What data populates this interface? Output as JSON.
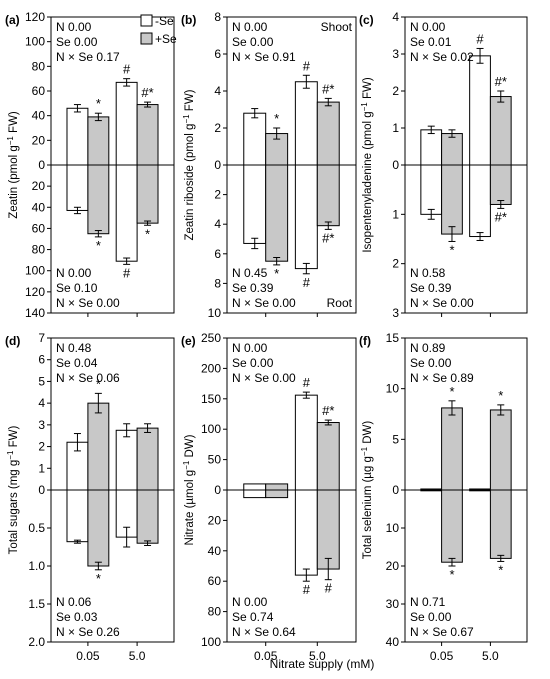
{
  "legend": {
    "ctrl": "-Se",
    "se": "+Se"
  },
  "xlabel": "Nitrate supply (mM)",
  "chart_data": [
    {
      "type": "bar",
      "label": "(a)",
      "ylabel": "Zeatin (pmol g⁻¹ FW)",
      "categories": [
        "0.05",
        "5.0"
      ],
      "upper": {
        "ylim": [
          0,
          120
        ],
        "ticks": [
          "120",
          "100",
          "80",
          "60",
          "40",
          "20",
          "0"
        ],
        "series": [
          {
            "name": "-Se",
            "values": [
              46,
              67
            ],
            "err": [
              3,
              3
            ],
            "marks": [
              "",
              "#"
            ]
          },
          {
            "name": "+Se",
            "values": [
              39,
              49
            ],
            "err": [
              3,
              2
            ],
            "marks": [
              "*",
              "#*"
            ]
          }
        ]
      },
      "lower": {
        "ylim": [
          0,
          140
        ],
        "ticks": [
          "20",
          "40",
          "60",
          "80",
          "100",
          "120",
          "140"
        ],
        "series": [
          {
            "name": "-Se",
            "values": [
              43,
              91
            ],
            "err": [
              3,
              3
            ],
            "marks": [
              "",
              "#"
            ]
          },
          {
            "name": "+Se",
            "values": [
              65,
              55
            ],
            "err": [
              3,
              2
            ],
            "marks": [
              "*",
              "*"
            ]
          }
        ]
      },
      "stats_top": [
        "N 0.00",
        "Se 0.00",
        "N × Se 0.17"
      ],
      "stats_bottom": [
        "N 0.00",
        "Se 0.10",
        "N × Se 0.00"
      ]
    },
    {
      "type": "bar",
      "label": "(b)",
      "ylabel": "Zeatin riboside (pmol g⁻¹ FW)",
      "categories": [
        "0.05",
        "5.0"
      ],
      "tag_top": "Shoot",
      "tag_bottom": "Root",
      "upper": {
        "ylim": [
          0,
          8
        ],
        "ticks": [
          "8",
          "6",
          "4",
          "2",
          "0"
        ],
        "series": [
          {
            "name": "-Se",
            "values": [
              2.8,
              4.5
            ],
            "err": [
              0.25,
              0.35
            ],
            "marks": [
              "",
              "#"
            ]
          },
          {
            "name": "+Se",
            "values": [
              1.7,
              3.4
            ],
            "err": [
              0.3,
              0.2
            ],
            "marks": [
              "*",
              "#*"
            ]
          }
        ]
      },
      "lower": {
        "ylim": [
          0,
          10
        ],
        "ticks": [
          "2",
          "4",
          "6",
          "8",
          "10"
        ],
        "series": [
          {
            "name": "-Se",
            "values": [
              5.3,
              7.0
            ],
            "err": [
              0.35,
              0.35
            ],
            "marks": [
              "",
              "#"
            ]
          },
          {
            "name": "+Se",
            "values": [
              6.5,
              4.1
            ],
            "err": [
              0.25,
              0.25
            ],
            "marks": [
              "*",
              "#*"
            ]
          }
        ]
      },
      "stats_top": [
        "N 0.00",
        "Se 0.00",
        "N × Se 0.91"
      ],
      "stats_bottom": [
        "N 0.45",
        "Se 0.39",
        "N × Se 0.00"
      ]
    },
    {
      "type": "bar",
      "label": "(c)",
      "ylabel": "Isopentenyladenine (pmol g⁻¹ FW)",
      "categories": [
        "0.05",
        "5.0"
      ],
      "upper": {
        "ylim": [
          0,
          4
        ],
        "ticks": [
          "4",
          "3",
          "2",
          "1",
          "0"
        ],
        "series": [
          {
            "name": "-Se",
            "values": [
              0.95,
              2.95
            ],
            "err": [
              0.1,
              0.2
            ],
            "marks": [
              "",
              "#"
            ]
          },
          {
            "name": "+Se",
            "values": [
              0.85,
              1.85
            ],
            "err": [
              0.1,
              0.15
            ],
            "marks": [
              "",
              "#*"
            ]
          }
        ]
      },
      "lower": {
        "ylim": [
          0,
          3
        ],
        "ticks": [
          "1",
          "2",
          "3"
        ],
        "series": [
          {
            "name": "-Se",
            "values": [
              1.0,
              1.45
            ],
            "err": [
              0.1,
              0.08
            ],
            "marks": [
              "",
              ""
            ]
          },
          {
            "name": "+Se",
            "values": [
              1.4,
              0.8
            ],
            "err": [
              0.15,
              0.08
            ],
            "marks": [
              "*",
              "#*"
            ]
          }
        ]
      },
      "stats_top": [
        "N 0.00",
        "Se 0.01",
        "N × Se 0.02"
      ],
      "stats_bottom": [
        "N 0.58",
        "Se 0.39",
        "N × Se 0.00"
      ]
    },
    {
      "type": "bar",
      "label": "(d)",
      "ylabel": "Total sugars (mg g⁻¹ FW)",
      "categories": [
        "0.05",
        "5.0"
      ],
      "upper": {
        "ylim": [
          0,
          7
        ],
        "ticks": [
          "7",
          "6",
          "5",
          "4",
          "3",
          "2",
          "1",
          "0"
        ],
        "series": [
          {
            "name": "-Se",
            "values": [
              2.2,
              2.75
            ],
            "err": [
              0.4,
              0.3
            ],
            "marks": [
              "",
              ""
            ]
          },
          {
            "name": "+Se",
            "values": [
              4.0,
              2.85
            ],
            "err": [
              0.45,
              0.2
            ],
            "marks": [
              "*",
              ""
            ]
          }
        ]
      },
      "lower": {
        "ylim": [
          0,
          2
        ],
        "ticks": [
          "0.5",
          "1.0",
          "1.5",
          "2.0"
        ],
        "series": [
          {
            "name": "-Se",
            "values": [
              0.68,
              0.62
            ],
            "err": [
              0.02,
              0.13
            ],
            "marks": [
              "",
              ""
            ]
          },
          {
            "name": "+Se",
            "values": [
              1.0,
              0.7
            ],
            "err": [
              0.05,
              0.03
            ],
            "marks": [
              "*",
              ""
            ]
          }
        ]
      },
      "stats_top": [
        "N 0.48",
        "Se 0.04",
        "N × Se 0.06"
      ],
      "stats_bottom": [
        "N 0.06",
        "Se 0.03",
        "N × Se 0.26"
      ]
    },
    {
      "type": "bar",
      "label": "(e)",
      "ylabel": "Nitrate (µmol g⁻¹ DW)",
      "categories": [
        "0.05",
        "5.0"
      ],
      "upper": {
        "ylim": [
          0,
          250
        ],
        "ticks": [
          "250",
          "200",
          "150",
          "100",
          "50",
          "0"
        ],
        "series": [
          {
            "name": "-Se",
            "values": [
              10,
              156
            ],
            "err": [
              0,
              5
            ],
            "marks": [
              "",
              "#"
            ]
          },
          {
            "name": "+Se",
            "values": [
              10,
              111
            ],
            "err": [
              0,
              4
            ],
            "marks": [
              "",
              "#*"
            ]
          }
        ]
      },
      "lower": {
        "ylim": [
          0,
          100
        ],
        "ticks": [
          "20",
          "40",
          "60",
          "80",
          "100"
        ],
        "series": [
          {
            "name": "-Se",
            "values": [
              5,
              56
            ],
            "err": [
              0,
              4
            ],
            "marks": [
              "",
              "#"
            ]
          },
          {
            "name": "+Se",
            "values": [
              5,
              52
            ],
            "err": [
              0,
              7
            ],
            "marks": [
              "",
              "#"
            ]
          }
        ]
      },
      "stats_top": [
        "N 0.00",
        "Se 0.00",
        "N × Se 0.00"
      ],
      "stats_bottom": [
        "N 0.00",
        "Se 0.74",
        "N × Se 0.64"
      ]
    },
    {
      "type": "bar",
      "label": "(f)",
      "ylabel": "Total selenium (µg g⁻¹ DW)",
      "categories": [
        "0.05",
        "5.0"
      ],
      "upper": {
        "ylim": [
          0,
          15
        ],
        "ticks": [
          "15",
          "10",
          "5",
          "0"
        ],
        "series": [
          {
            "name": "-Se",
            "values": [
              0.1,
              0.1
            ],
            "err": [
              0,
              0
            ],
            "marks": [
              "",
              ""
            ]
          },
          {
            "name": "+Se",
            "values": [
              8.1,
              7.9
            ],
            "err": [
              0.7,
              0.5
            ],
            "marks": [
              "*",
              "*"
            ]
          }
        ]
      },
      "lower": {
        "ylim": [
          0,
          40
        ],
        "ticks": [
          "10",
          "20",
          "30",
          "40"
        ],
        "series": [
          {
            "name": "-Se",
            "values": [
              0.1,
              0.1
            ],
            "err": [
              0,
              0
            ],
            "marks": [
              "",
              ""
            ]
          },
          {
            "name": "+Se",
            "values": [
              19,
              18
            ],
            "err": [
              1,
              0.8
            ],
            "marks": [
              "*",
              "*"
            ]
          }
        ]
      },
      "stats_top": [
        "N 0.89",
        "Se 0.00",
        "N × Se 0.89"
      ],
      "stats_bottom": [
        "N 0.71",
        "Se 0.00",
        "N × Se 0.67"
      ]
    }
  ]
}
